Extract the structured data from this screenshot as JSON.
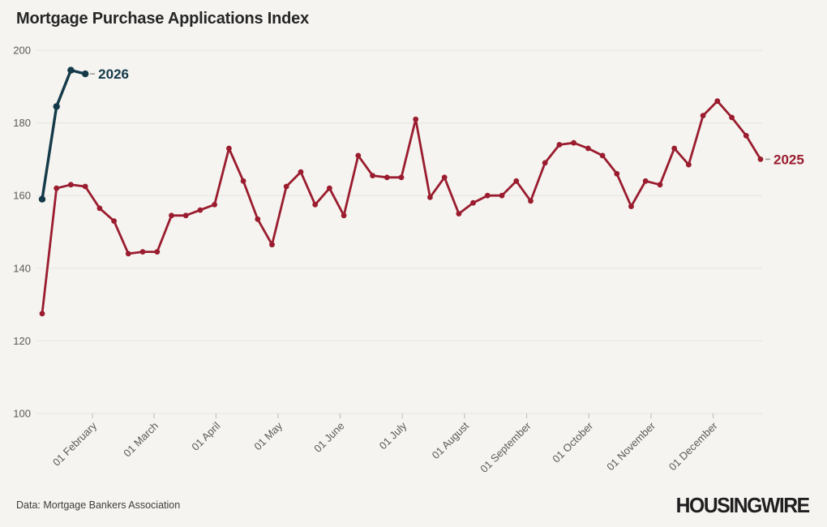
{
  "chart_data": {
    "type": "line",
    "title": "Mortgage Purchase Applications Index",
    "source": "Data: Mortgage Bankers Association",
    "brand": "HOUSINGWIRE",
    "xlabel": "",
    "ylabel": "",
    "ylim": [
      100,
      200
    ],
    "yticks": [
      100,
      120,
      140,
      160,
      180,
      200
    ],
    "grid": "horizontal",
    "legend_position": "end-of-line-labels",
    "x_unit": "weeks from early January",
    "xticks": [
      {
        "label": "01 February",
        "week": 3.5
      },
      {
        "label": "01 March",
        "week": 7.79
      },
      {
        "label": "01 April",
        "week": 12.1
      },
      {
        "label": "01 May",
        "week": 16.42
      },
      {
        "label": "01 June",
        "week": 20.74
      },
      {
        "label": "01 July",
        "week": 25.07
      },
      {
        "label": "01 August",
        "week": 29.4
      },
      {
        "label": "01 September",
        "week": 33.72
      },
      {
        "label": "01 October",
        "week": 38.05
      },
      {
        "label": "01 November",
        "week": 42.38
      },
      {
        "label": "01 December",
        "week": 46.7
      }
    ],
    "series": [
      {
        "name": "2025",
        "color": "#9a1c2e",
        "start_week": 0,
        "values": [
          127.5,
          162,
          163,
          162.5,
          156.5,
          153,
          144,
          144.5,
          144.5,
          154.5,
          154.5,
          156,
          157.5,
          173,
          164,
          153.5,
          146.5,
          162.5,
          166.5,
          157.5,
          162,
          154.5,
          171,
          165.5,
          165,
          165,
          181,
          159.5,
          165,
          155,
          158,
          160,
          160,
          164,
          158.5,
          169,
          174,
          174.5,
          173,
          171,
          166,
          157,
          164,
          163,
          173,
          168.5,
          182,
          186,
          181.5,
          176.5,
          170
        ]
      },
      {
        "name": "2026",
        "color": "#143a49",
        "start_week": 0,
        "values": [
          159,
          184.5,
          194.5,
          193.5
        ]
      }
    ]
  }
}
